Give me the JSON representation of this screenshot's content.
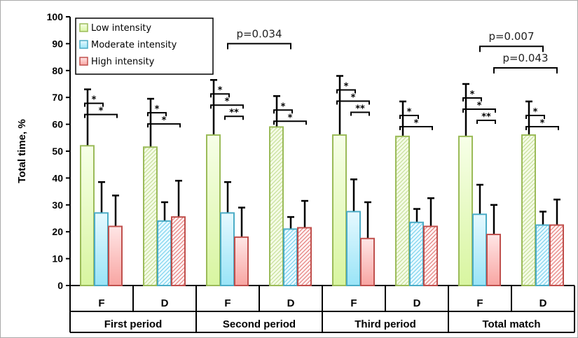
{
  "chart_data": {
    "type": "bar",
    "ylabel": "Total time, %",
    "ylim": [
      0,
      100
    ],
    "yticks": [
      0,
      10,
      20,
      30,
      40,
      50,
      60,
      70,
      80,
      90,
      100
    ],
    "groups": [
      "First period",
      "Second period",
      "Third period",
      "Total match"
    ],
    "subgroups": [
      "F",
      "D"
    ],
    "legend_position": "top-left",
    "series": [
      {
        "name": "Low intensity",
        "color": "#9bbb59",
        "fill": "#e4f8c0",
        "values": [
          52,
          51.5,
          56,
          59,
          56,
          55.5,
          55.5,
          56
        ],
        "error_top": [
          73,
          69.5,
          76.5,
          70.5,
          78,
          68.5,
          75,
          68.5
        ]
      },
      {
        "name": "Moderate intensity",
        "color": "#4bacc6",
        "fill": "#bdeefa",
        "values": [
          27,
          24,
          27,
          21,
          27.5,
          23.5,
          26.5,
          22.5
        ],
        "error_top": [
          38.5,
          31,
          38.5,
          25.5,
          39.5,
          28.5,
          37.5,
          27.5
        ]
      },
      {
        "name": "High intensity",
        "color": "#c0504d",
        "fill": "#fcc8c6",
        "values": [
          22,
          25.5,
          18,
          21.5,
          17.5,
          22,
          19,
          22.5
        ],
        "error_top": [
          33.5,
          39,
          29,
          31.5,
          31,
          32.5,
          30,
          32
        ]
      }
    ],
    "within_brackets": [
      {
        "bar": 0,
        "pairs": [
          [
            "L",
            "M",
            "*"
          ],
          [
            "L",
            "H",
            "*"
          ]
        ]
      },
      {
        "bar": 1,
        "pairs": [
          [
            "L",
            "M",
            "*"
          ],
          [
            "L",
            "H",
            "*"
          ]
        ]
      },
      {
        "bar": 2,
        "pairs": [
          [
            "L",
            "M",
            "*"
          ],
          [
            "L",
            "H",
            "*"
          ],
          [
            "M",
            "H",
            "**"
          ]
        ]
      },
      {
        "bar": 3,
        "pairs": [
          [
            "L",
            "M",
            "*"
          ],
          [
            "L",
            "H",
            "*"
          ]
        ]
      },
      {
        "bar": 4,
        "pairs": [
          [
            "L",
            "M",
            "*"
          ],
          [
            "L",
            "H",
            "*"
          ],
          [
            "M",
            "H",
            "**"
          ]
        ]
      },
      {
        "bar": 5,
        "pairs": [
          [
            "L",
            "M",
            "*"
          ],
          [
            "L",
            "H",
            "*"
          ]
        ]
      },
      {
        "bar": 6,
        "pairs": [
          [
            "L",
            "M",
            "*"
          ],
          [
            "L",
            "H",
            "*"
          ],
          [
            "M",
            "H",
            "**"
          ]
        ]
      },
      {
        "bar": 7,
        "pairs": [
          [
            "L",
            "M",
            "*"
          ],
          [
            "L",
            "H",
            "*"
          ]
        ]
      }
    ],
    "between_brackets": [
      {
        "label": "p=0.034",
        "from": [
          2,
          "M"
        ],
        "to": [
          3,
          "M"
        ]
      },
      {
        "label": "p=0.007",
        "from": [
          6,
          "M"
        ],
        "to": [
          7,
          "M"
        ]
      },
      {
        "label": "p=0.043",
        "from": [
          6,
          "H"
        ],
        "to": [
          7,
          "H"
        ]
      }
    ]
  }
}
